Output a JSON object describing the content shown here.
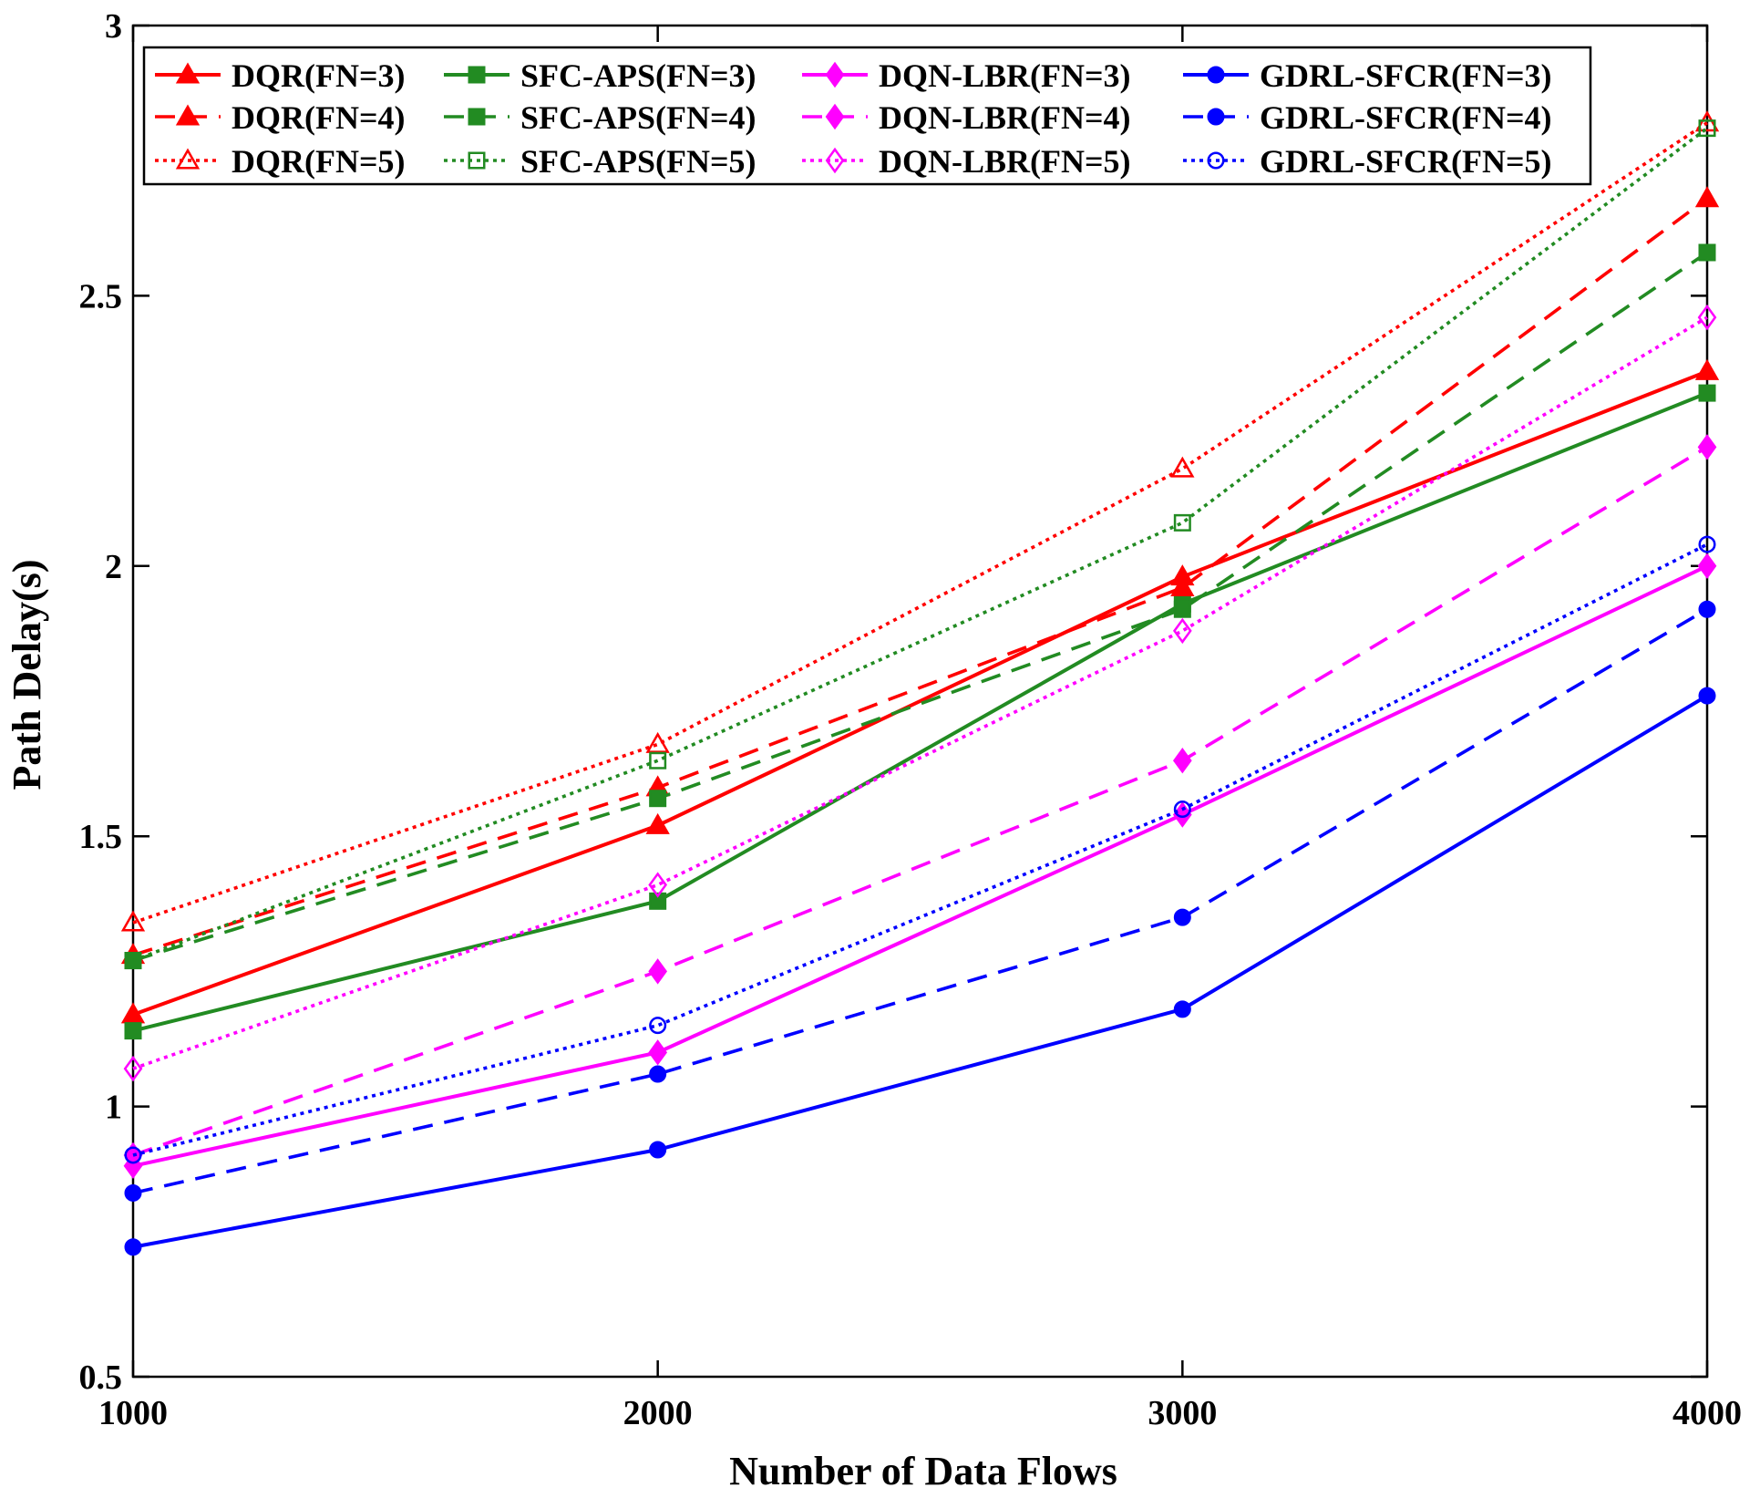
{
  "chart_data": {
    "type": "line",
    "xlabel": "Number of Data Flows",
    "ylabel": "Path Delay(s)",
    "x": [
      1000,
      2000,
      3000,
      4000
    ],
    "xticks": [
      "1000",
      "2000",
      "3000",
      "4000"
    ],
    "yticks": [
      "0.5",
      "1",
      "1.5",
      "2",
      "2.5",
      "3"
    ],
    "xlim": [
      1000,
      4000
    ],
    "ylim": [
      0.5,
      3
    ],
    "grid": false,
    "legend_position": "top-left",
    "series": [
      {
        "name": "DQR(FN=3)",
        "color": "#ff0000",
        "style": "solid",
        "marker": "triangle",
        "values": [
          1.17,
          1.52,
          1.98,
          2.36
        ]
      },
      {
        "name": "SFC-APS(FN=3)",
        "color": "#228b22",
        "style": "solid",
        "marker": "square",
        "values": [
          1.14,
          1.38,
          1.93,
          2.32
        ]
      },
      {
        "name": "DQN-LBR(FN=3)",
        "color": "#ff00ff",
        "style": "solid",
        "marker": "diamond",
        "values": [
          0.89,
          1.1,
          1.54,
          2.0
        ]
      },
      {
        "name": "GDRL-SFCR(FN=3)",
        "color": "#0000ff",
        "style": "solid",
        "marker": "circle",
        "values": [
          0.74,
          0.92,
          1.18,
          1.76
        ]
      },
      {
        "name": "DQR(FN=4)",
        "color": "#ff0000",
        "style": "dashed",
        "marker": "triangle",
        "values": [
          1.28,
          1.59,
          1.96,
          2.68
        ]
      },
      {
        "name": "SFC-APS(FN=4)",
        "color": "#228b22",
        "style": "dashed",
        "marker": "square",
        "values": [
          1.27,
          1.57,
          1.92,
          2.58
        ]
      },
      {
        "name": "DQN-LBR(FN=4)",
        "color": "#ff00ff",
        "style": "dashed",
        "marker": "diamond",
        "values": [
          0.91,
          1.25,
          1.64,
          2.22
        ]
      },
      {
        "name": "GDRL-SFCR(FN=4)",
        "color": "#0000ff",
        "style": "dashed",
        "marker": "circle",
        "values": [
          0.84,
          1.06,
          1.35,
          1.92
        ]
      },
      {
        "name": "DQR(FN=5)",
        "color": "#ff0000",
        "style": "dotted",
        "marker": "triangle",
        "values": [
          1.34,
          1.67,
          2.18,
          2.82
        ]
      },
      {
        "name": "SFC-APS(FN=5)",
        "color": "#228b22",
        "style": "dotted",
        "marker": "square",
        "values": [
          1.27,
          1.64,
          2.08,
          2.81
        ]
      },
      {
        "name": "DQN-LBR(FN=5)",
        "color": "#ff00ff",
        "style": "dotted",
        "marker": "diamond",
        "values": [
          1.07,
          1.41,
          1.88,
          2.46
        ]
      },
      {
        "name": "GDRL-SFCR(FN=5)",
        "color": "#0000ff",
        "style": "dotted",
        "marker": "circle",
        "values": [
          0.91,
          1.15,
          1.55,
          2.04
        ]
      }
    ]
  }
}
